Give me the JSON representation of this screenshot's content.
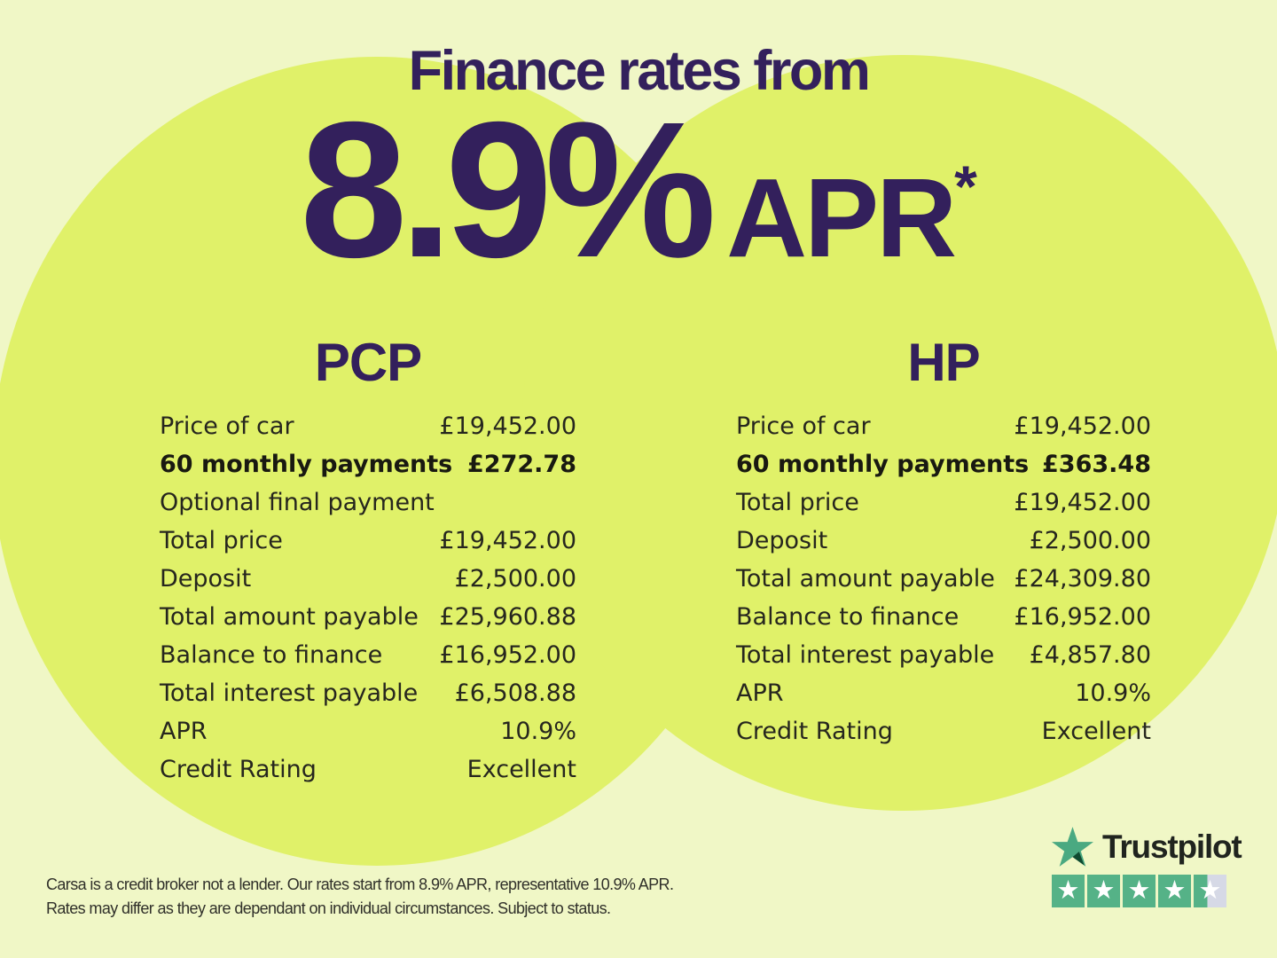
{
  "colors": {
    "bg_light": "#f0f7c6",
    "circle_lime": "#e0f169",
    "heading_purple": "#33205c",
    "table_text": "#26261e",
    "trustpilot_green": "#4aa981",
    "trustpilot_star_shadow": "#0f4a30",
    "star_box_green": "#55b287",
    "star_box_gray": "#d6d9e6",
    "trustpilot_text": "#20241f"
  },
  "header": {
    "title": "Finance rates from",
    "rate": "8.9%",
    "rate_unit": "APR",
    "rate_footnote_mark": "*"
  },
  "tables": [
    {
      "title": "PCP",
      "rows": [
        {
          "label": "Price of car",
          "value": "£19,452.00",
          "bold": false
        },
        {
          "label": "60 monthly payments",
          "value": "£272.78",
          "bold": true
        },
        {
          "label": "Optional final payment",
          "value": "",
          "bold": false
        },
        {
          "label": "Total price",
          "value": "£19,452.00",
          "bold": false
        },
        {
          "label": "Deposit",
          "value": "£2,500.00",
          "bold": false
        },
        {
          "label": "Total amount payable",
          "value": "£25,960.88",
          "bold": false
        },
        {
          "label": "Balance to finance",
          "value": "£16,952.00",
          "bold": false
        },
        {
          "label": "Total interest payable",
          "value": "£6,508.88",
          "bold": false
        },
        {
          "label": "APR",
          "value": "10.9%",
          "bold": false
        },
        {
          "label": "Credit Rating",
          "value": "Excellent",
          "bold": false
        }
      ]
    },
    {
      "title": "HP",
      "rows": [
        {
          "label": "Price of car",
          "value": "£19,452.00",
          "bold": false
        },
        {
          "label": "60 monthly payments",
          "value": "£363.48",
          "bold": true
        },
        {
          "label": "Total price",
          "value": "£19,452.00",
          "bold": false
        },
        {
          "label": "Deposit",
          "value": "£2,500.00",
          "bold": false
        },
        {
          "label": "Total amount payable",
          "value": "£24,309.80",
          "bold": false
        },
        {
          "label": "Balance to finance",
          "value": "£16,952.00",
          "bold": false
        },
        {
          "label": "Total interest payable",
          "value": "£4,857.80",
          "bold": false
        },
        {
          "label": "APR",
          "value": "10.9%",
          "bold": false
        },
        {
          "label": "Credit Rating",
          "value": "Excellent",
          "bold": false
        }
      ]
    }
  ],
  "disclaimer": {
    "line1": "Carsa is a credit broker not a lender. Our rates start from 8.9% APR, representative 10.9% APR.",
    "line2": "Rates may differ as they are dependant on individual circumstances. Subject to status."
  },
  "trustpilot": {
    "brand": "Trustpilot",
    "rating": 4.42,
    "stars_total": 5
  }
}
